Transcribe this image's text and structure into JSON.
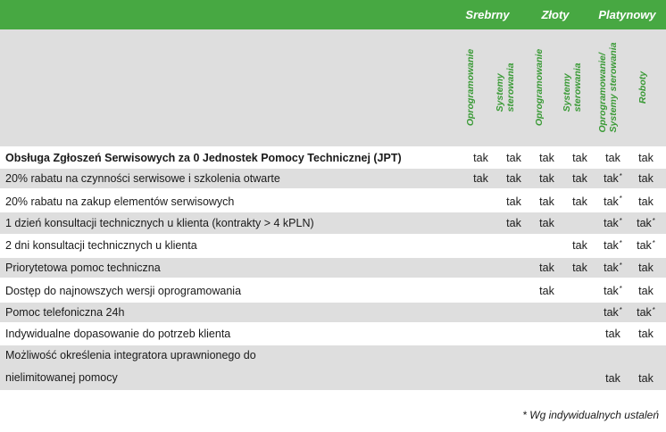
{
  "tiers": {
    "srebrny": "Srebrny",
    "zloty": "Złoty",
    "platynowy": "Platynowy"
  },
  "columns": {
    "c1": [
      "Oprogramowanie"
    ],
    "c2": [
      "Systemy",
      "sterowania"
    ],
    "c3": [
      "Oprogramowanie"
    ],
    "c4": [
      "Systemy",
      "sterowania"
    ],
    "c5": [
      "Oprogramowanie/",
      "Systemy sterowania"
    ],
    "c6": [
      "Roboty"
    ]
  },
  "rows": [
    {
      "label": "Obsługa Zgłoszeń Serwisowych za 0 Jednostek Pomocy Technicznej (JPT)",
      "cells": [
        "tak",
        "tak",
        "tak",
        "tak",
        "tak",
        "tak"
      ],
      "marks": [
        "",
        "",
        "",
        "",
        "",
        ""
      ]
    },
    {
      "label": "20% rabatu na czynności serwisowe i szkolenia otwarte",
      "cells": [
        "tak",
        "tak",
        "tak",
        "tak",
        "tak",
        "tak"
      ],
      "marks": [
        "",
        "",
        "",
        "",
        "*",
        ""
      ]
    },
    {
      "label": "20% rabatu na zakup elementów serwisowych",
      "cells": [
        "",
        "tak",
        "tak",
        "tak",
        "tak",
        "tak"
      ],
      "marks": [
        "",
        "",
        "",
        "",
        "*",
        ""
      ]
    },
    {
      "label": "1 dzień konsultacji technicznych u klienta (kontrakty > 4 kPLN)",
      "cells": [
        "",
        "tak",
        "tak",
        "",
        "tak",
        "tak"
      ],
      "marks": [
        "",
        "",
        "",
        "",
        "*",
        "*"
      ]
    },
    {
      "label": "2 dni konsultacji technicznych u klienta",
      "cells": [
        "",
        "",
        "",
        "tak",
        "tak",
        "tak"
      ],
      "marks": [
        "",
        "",
        "",
        "",
        "*",
        "*"
      ]
    },
    {
      "label": "Priorytetowa pomoc techniczna",
      "cells": [
        "",
        "",
        "tak",
        "tak",
        "tak",
        "tak"
      ],
      "marks": [
        "",
        "",
        "",
        "",
        "*",
        ""
      ]
    },
    {
      "label": "Dostęp do najnowszych wersji oprogramowania",
      "cells": [
        "",
        "",
        "tak",
        "",
        "tak",
        "tak"
      ],
      "marks": [
        "",
        "",
        "",
        "",
        "*",
        ""
      ]
    },
    {
      "label": "Pomoc telefoniczna 24h",
      "cells": [
        "",
        "",
        "",
        "",
        "tak",
        "tak"
      ],
      "marks": [
        "",
        "",
        "",
        "",
        "*",
        "*"
      ]
    },
    {
      "label": "Indywidualne dopasowanie do potrzeb klienta",
      "cells": [
        "",
        "",
        "",
        "",
        "tak",
        "tak"
      ],
      "marks": [
        "",
        "",
        "",
        "",
        "",
        ""
      ]
    }
  ],
  "last_row": {
    "label_line1": "Możliwość określenia integratora uprawnionego do",
    "label_line2": "nielimitowanej pomocy",
    "cells": [
      "",
      "",
      "",
      "",
      "tak",
      "tak"
    ]
  },
  "footnote": "* Wg indywidualnych ustaleń"
}
